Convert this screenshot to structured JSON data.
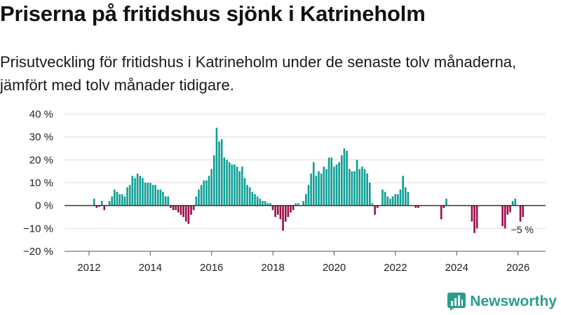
{
  "header": {
    "title": "Priserna på fritidshus sjönk i Katrineholm",
    "subtitle": "Prisutveckling för fritidshus i Katrineholm under de senaste tolv månaderna, jämfört med tolv månader tidigare."
  },
  "brand": {
    "name": "Newsworthy"
  },
  "colors": {
    "positive": "#0e9f95",
    "negative": "#9b0f4a",
    "grid": "#dddddd",
    "axis": "#333333",
    "brand": "#2a9d8f"
  },
  "chart_data": {
    "type": "bar",
    "title": "Priserna på fritidshus sjönk i Katrineholm",
    "xlabel": "",
    "ylabel": "",
    "x_start": 2012.0,
    "x_step": 0.0833,
    "xlim": [
      2011.2,
      2026.9
    ],
    "ylim": [
      -20,
      40
    ],
    "y_ticks": [
      40,
      30,
      20,
      10,
      0,
      -10,
      -20
    ],
    "y_tick_labels": [
      "40 %",
      "30 %",
      "20 %",
      "10 %",
      "0 %",
      "−10 %",
      "−20 %"
    ],
    "x_ticks": [
      2012,
      2014,
      2016,
      2018,
      2020,
      2022,
      2024,
      2026
    ],
    "x_tick_labels": [
      "2012",
      "2014",
      "2016",
      "2018",
      "2020",
      "2022",
      "2024",
      "2026"
    ],
    "values": [
      null,
      null,
      3,
      -1,
      -0.5,
      2,
      -2,
      null,
      2,
      4,
      7,
      6,
      5,
      5,
      4,
      8,
      9,
      13,
      12,
      14,
      13,
      12,
      10,
      10,
      10,
      9,
      9,
      7,
      7,
      6,
      4,
      4,
      -1,
      -2,
      -2,
      -3,
      -4,
      -5,
      -7,
      -8,
      -4,
      -2,
      4,
      7,
      9,
      11,
      11,
      13,
      16,
      22,
      34,
      28,
      29,
      21,
      20,
      19,
      18,
      18,
      17,
      15,
      17,
      12,
      9,
      8,
      6,
      5,
      4,
      3,
      2,
      2,
      1,
      1,
      -2,
      -5,
      -4,
      -6,
      -11,
      -7,
      -5,
      -3,
      -2,
      1,
      1,
      null,
      2,
      5,
      9,
      14,
      19,
      13,
      15,
      14,
      17,
      16,
      21,
      21,
      17,
      18,
      19,
      22,
      25,
      24,
      16,
      15,
      15,
      20,
      16,
      17,
      16,
      14,
      10,
      1,
      -4,
      -1,
      null,
      7,
      6,
      4,
      3,
      4,
      5,
      5,
      7,
      13,
      8,
      6,
      null,
      null,
      -1,
      -1,
      null,
      null,
      null,
      null,
      null,
      null,
      null,
      null,
      -6,
      -1,
      3,
      null,
      null,
      null,
      null,
      null,
      null,
      null,
      null,
      null,
      -7,
      -12,
      -10,
      null,
      null,
      null,
      null,
      null,
      null,
      null,
      null,
      null,
      -9,
      -10,
      -4,
      -3,
      2,
      3,
      null,
      -7,
      -5
    ],
    "annotations": [
      {
        "label": "−5 %",
        "value": -5
      }
    ]
  }
}
